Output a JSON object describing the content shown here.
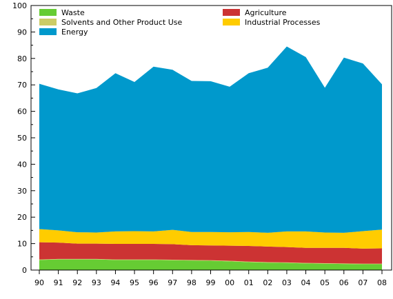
{
  "chart_data": {
    "type": "area",
    "stacked": true,
    "title": "",
    "xlabel": "",
    "ylabel": "",
    "ylim": [
      0,
      100
    ],
    "yticks": [
      0,
      10,
      20,
      30,
      40,
      50,
      60,
      70,
      80,
      90,
      100
    ],
    "grid": false,
    "legend_position": "top",
    "categories": [
      "90",
      "91",
      "92",
      "93",
      "94",
      "95",
      "96",
      "97",
      "98",
      "99",
      "00",
      "01",
      "02",
      "03",
      "04",
      "05",
      "06",
      "07",
      "08"
    ],
    "series": [
      {
        "name": "Waste",
        "color": "#66cc33",
        "values": [
          3.8,
          4.0,
          4.0,
          4.0,
          3.8,
          3.8,
          3.8,
          3.7,
          3.6,
          3.5,
          3.3,
          3.0,
          2.8,
          2.7,
          2.5,
          2.4,
          2.3,
          2.2,
          2.2
        ]
      },
      {
        "name": "Solvents and Other Product Use",
        "color": "#cccc66",
        "values": [
          0.2,
          0.2,
          0.2,
          0.2,
          0.2,
          0.2,
          0.2,
          0.2,
          0.2,
          0.2,
          0.2,
          0.2,
          0.2,
          0.2,
          0.2,
          0.2,
          0.2,
          0.2,
          0.2
        ]
      },
      {
        "name": "Agriculture",
        "color": "#cc3333",
        "values": [
          6.5,
          6.2,
          5.8,
          5.8,
          5.9,
          5.9,
          5.9,
          5.9,
          5.6,
          5.6,
          5.7,
          5.9,
          5.9,
          5.8,
          5.7,
          5.8,
          5.9,
          5.7,
          5.8
        ]
      },
      {
        "name": "Industrial Processes",
        "color": "#ffcc00",
        "values": [
          5.0,
          4.6,
          4.3,
          4.2,
          4.7,
          4.8,
          4.7,
          5.4,
          5.0,
          5.1,
          5.1,
          5.3,
          5.2,
          5.9,
          6.2,
          5.8,
          5.7,
          6.6,
          7.1
        ]
      },
      {
        "name": "Energy",
        "color": "#0099cc",
        "values": [
          54.9,
          53.3,
          52.5,
          54.6,
          59.8,
          56.4,
          62.3,
          60.5,
          57.1,
          57.0,
          55.0,
          60.0,
          62.4,
          69.9,
          65.9,
          54.7,
          66.2,
          63.4,
          54.9
        ]
      }
    ],
    "legend_order": [
      "Waste",
      "Agriculture",
      "Solvents and Other Product Use",
      "Industrial Processes",
      "Energy"
    ]
  }
}
